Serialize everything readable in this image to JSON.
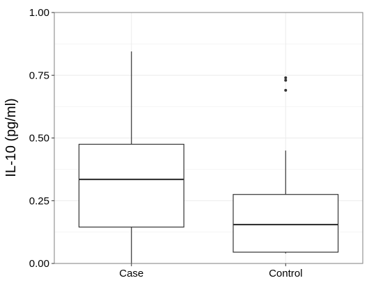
{
  "chart_data": {
    "type": "boxplot",
    "title": "",
    "xlabel": "",
    "ylabel": "IL-10 (pg/ml)",
    "ylim": [
      0,
      1
    ],
    "y_ticks": [
      "0.00",
      "0.25",
      "0.50",
      "0.75",
      "1.00"
    ],
    "categories": [
      "Case",
      "Control"
    ],
    "boxes": [
      {
        "category": "Case",
        "whisker_low": 0.0,
        "q1": 0.145,
        "median": 0.335,
        "q3": 0.475,
        "whisker_high": 0.845,
        "outliers": []
      },
      {
        "category": "Control",
        "whisker_low": 0.04,
        "q1": 0.045,
        "median": 0.155,
        "q3": 0.275,
        "whisker_high": 0.45,
        "outliers": [
          0.69,
          0.73,
          0.74
        ]
      }
    ],
    "grid": true,
    "legend": "none",
    "colors": {
      "box_stroke": "#333333",
      "grid": "#ebebeb",
      "panel_border": "#7f7f7f",
      "background": "#ffffff"
    }
  }
}
